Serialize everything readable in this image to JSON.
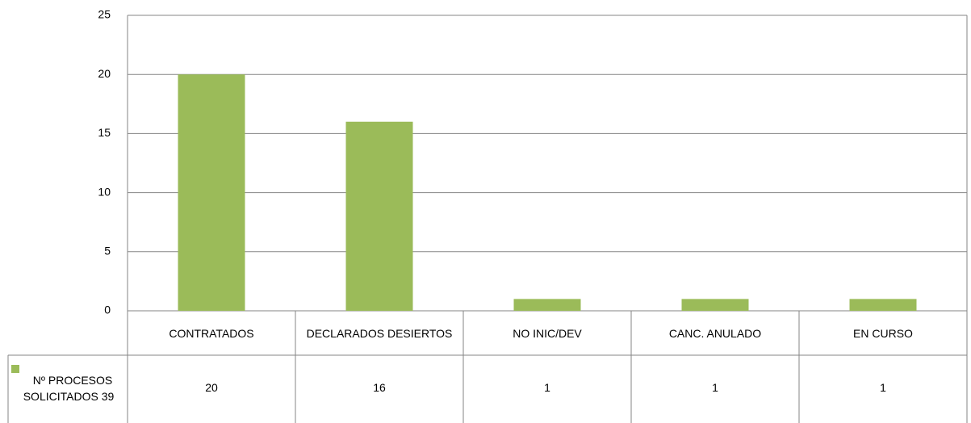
{
  "chart_data": {
    "type": "bar",
    "categories": [
      "CONTRATADOS",
      "DECLARADOS DESIERTOS",
      "NO INIC/DEV",
      "CANC. ANULADO",
      "EN CURSO"
    ],
    "series": [
      {
        "name": "Nº PROCESOS SOLICITADOS 39",
        "color": "#9bbb59",
        "values": [
          20,
          16,
          1,
          1,
          1
        ]
      }
    ],
    "ylim": [
      0,
      25
    ],
    "yticks": [
      0,
      5,
      10,
      15,
      20,
      25
    ],
    "grid": true,
    "data_table": true
  }
}
